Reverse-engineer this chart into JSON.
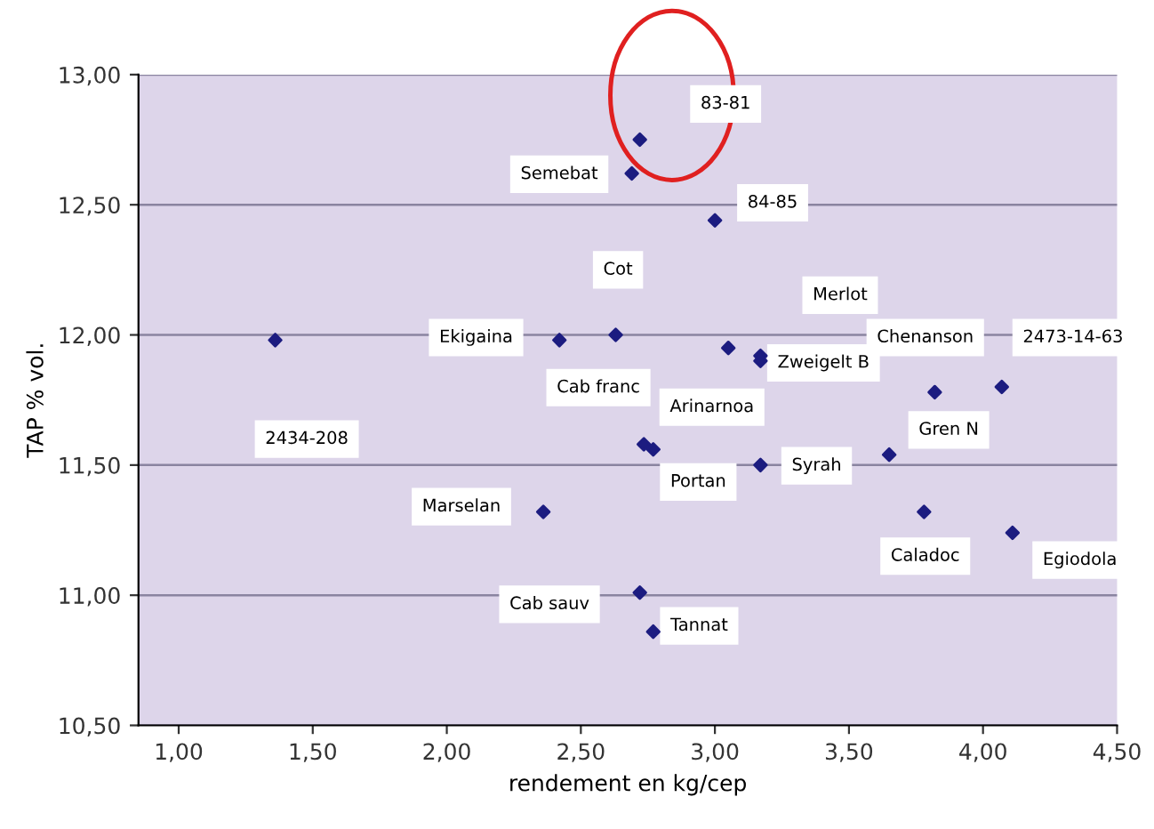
{
  "chart_data": {
    "type": "scatter",
    "xlabel": "rendement en kg/cep",
    "ylabel": "TAP % vol.",
    "xlim": [
      0.85,
      4.5
    ],
    "ylim": [
      10.5,
      13.0
    ],
    "xticks": [
      {
        "value": 1.0,
        "label": "1,00"
      },
      {
        "value": 1.5,
        "label": "1,50"
      },
      {
        "value": 2.0,
        "label": "2,00"
      },
      {
        "value": 2.5,
        "label": "2,50"
      },
      {
        "value": 3.0,
        "label": "3,00"
      },
      {
        "value": 3.5,
        "label": "3,50"
      },
      {
        "value": 4.0,
        "label": "4,00"
      },
      {
        "value": 4.5,
        "label": "4,50"
      }
    ],
    "yticks": [
      {
        "value": 10.5,
        "label": "10,50"
      },
      {
        "value": 11.0,
        "label": "11,00"
      },
      {
        "value": 11.5,
        "label": "11,50"
      },
      {
        "value": 12.0,
        "label": "12,00"
      },
      {
        "value": 12.5,
        "label": "12,50"
      },
      {
        "value": 13.0,
        "label": "13,00"
      }
    ],
    "grid": "y",
    "marker": "diamond",
    "series": [
      {
        "color": "#1c1c80",
        "x": [
          1.36,
          2.42,
          2.63,
          2.69,
          2.72,
          3.0,
          3.05,
          3.17,
          3.17,
          2.735,
          2.77,
          3.17,
          3.65,
          3.82,
          4.07,
          3.78,
          4.11,
          2.36,
          2.72,
          2.77
        ],
        "values": [
          11.98,
          11.98,
          12.0,
          12.62,
          12.75,
          12.44,
          11.95,
          11.92,
          11.9,
          11.58,
          11.56,
          11.5,
          11.54,
          11.78,
          11.8,
          11.32,
          11.24,
          11.32,
          11.01,
          10.86
        ]
      }
    ],
    "annotations": [
      "2434-208",
      "Ekigaina",
      "Cot",
      "Semebat",
      "83-81",
      "84-85",
      "Merlot",
      "Zweigelt B",
      "Arinarnoa",
      "Cab franc",
      "Portan",
      "Syrah",
      "Gren N",
      "Chenanson",
      "2473-14-63",
      "Caladoc",
      "Egiodola",
      "Marselan",
      "Cab sauv",
      "Tannat"
    ]
  }
}
